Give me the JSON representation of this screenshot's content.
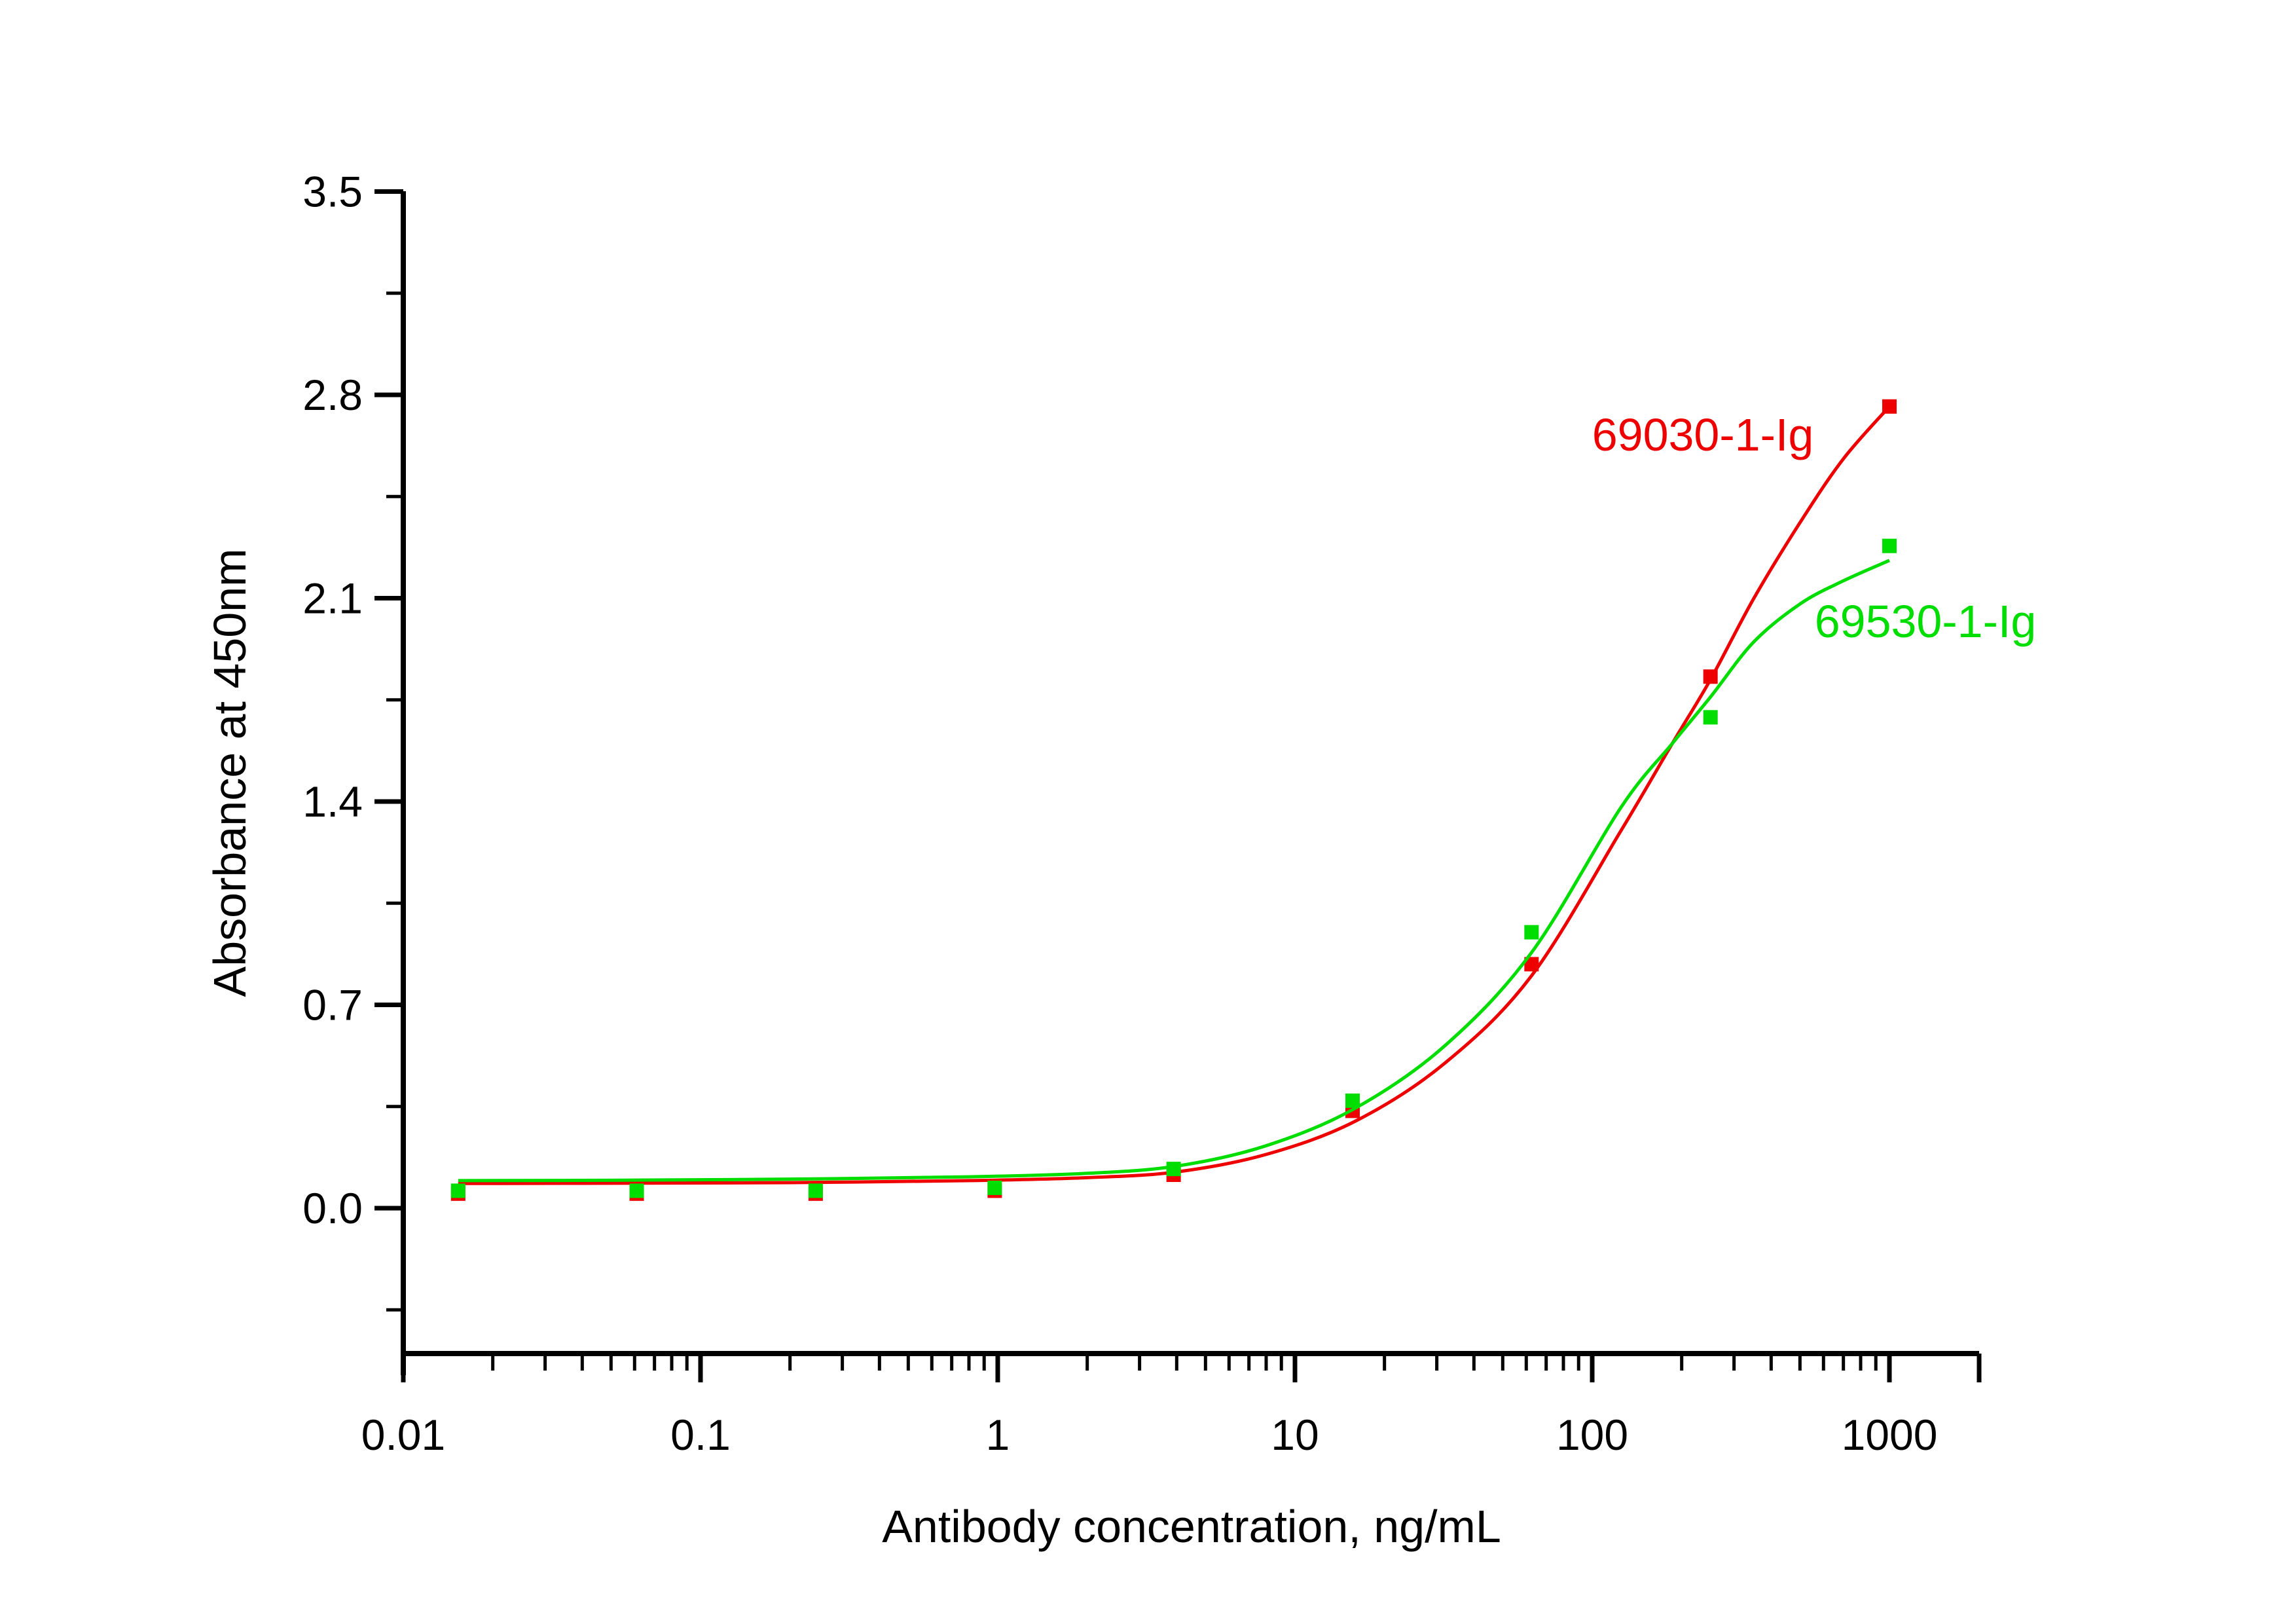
{
  "chart_data": {
    "type": "line",
    "title": "",
    "xlabel": "Antibody concentration, ng/mL",
    "ylabel": "Absorbance at 450nm",
    "x_scale": "log",
    "xlim": [
      0.01,
      2000
    ],
    "ylim": [
      -0.5,
      3.5
    ],
    "grid": false,
    "legend_position": "inline-annotations",
    "x_ticks": [
      "0.01",
      "0.1",
      "1",
      "10",
      "100",
      "1000"
    ],
    "y_ticks": [
      "3.5",
      "2.8",
      "2.1",
      "1.4",
      "0.7",
      "0.0"
    ],
    "y_minor_step": 0.35,
    "marker": "square",
    "series": [
      {
        "name": "69030-1-Ig",
        "color": "#ee0000",
        "x": [
          0.0153,
          0.061,
          0.244,
          0.977,
          3.906,
          15.625,
          62.5,
          250,
          1000
        ],
        "y": [
          0.05,
          0.05,
          0.05,
          0.06,
          0.115,
          0.335,
          0.84,
          1.83,
          2.76
        ],
        "curve": [
          [
            0.0153,
            0.085
          ],
          [
            0.05,
            0.086
          ],
          [
            0.2,
            0.088
          ],
          [
            0.8,
            0.095
          ],
          [
            2,
            0.105
          ],
          [
            4,
            0.125
          ],
          [
            8,
            0.185
          ],
          [
            16,
            0.3
          ],
          [
            32,
            0.5
          ],
          [
            62.5,
            0.8
          ],
          [
            125,
            1.3
          ],
          [
            186,
            1.6
          ],
          [
            250,
            1.82
          ],
          [
            350,
            2.1
          ],
          [
            500,
            2.36
          ],
          [
            700,
            2.58
          ],
          [
            1000,
            2.76
          ]
        ]
      },
      {
        "name": "69530-1-Ig",
        "color": "#00dd00",
        "x": [
          0.0153,
          0.061,
          0.244,
          0.977,
          3.906,
          15.625,
          62.5,
          250,
          1000
        ],
        "y": [
          0.06,
          0.06,
          0.06,
          0.07,
          0.135,
          0.37,
          0.95,
          1.69,
          2.28
        ],
        "curve": [
          [
            0.0153,
            0.095
          ],
          [
            0.05,
            0.096
          ],
          [
            0.2,
            0.1
          ],
          [
            0.8,
            0.108
          ],
          [
            2,
            0.12
          ],
          [
            4,
            0.145
          ],
          [
            8,
            0.215
          ],
          [
            16,
            0.345
          ],
          [
            32,
            0.56
          ],
          [
            62.5,
            0.88
          ],
          [
            125,
            1.38
          ],
          [
            186,
            1.6
          ],
          [
            250,
            1.76
          ],
          [
            350,
            1.95
          ],
          [
            500,
            2.08
          ],
          [
            700,
            2.16
          ],
          [
            1000,
            2.23
          ]
        ]
      }
    ]
  }
}
